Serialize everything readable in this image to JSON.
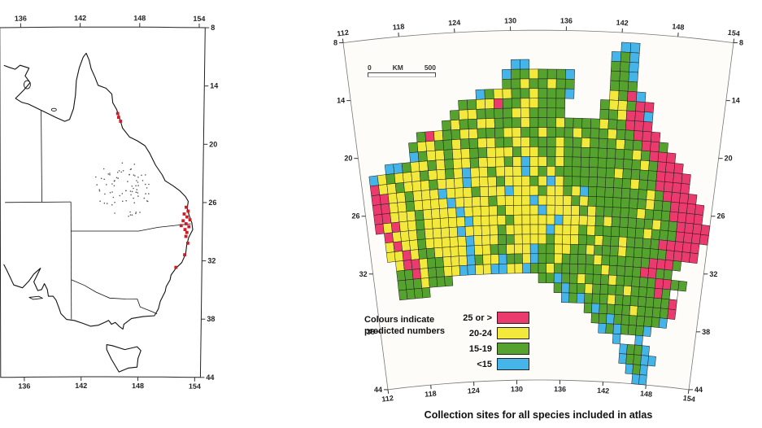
{
  "caption": "Collection sites for all species included in atlas",
  "scalebar": {
    "left": "0",
    "unit": "KM",
    "right": "500"
  },
  "legend": {
    "title_line1": "Colours indicate",
    "title_line2": "predicted numbers",
    "items": [
      {
        "label": "25 or >",
        "color": "#ea3a6e"
      },
      {
        "label": "20-24",
        "color": "#f2e93c"
      },
      {
        "label": "15-19",
        "color": "#55a32e"
      },
      {
        "label": "<15",
        "color": "#45b4e8"
      }
    ]
  },
  "left_map": {
    "ticks_top": [
      "136",
      "142",
      "148",
      "154"
    ],
    "ticks_bottom": [
      "136",
      "142",
      "148",
      "154"
    ],
    "ticks_right": [
      "8",
      "14",
      "20",
      "26",
      "32",
      "38",
      "44"
    ],
    "markers": {
      "color": "#cf1b26",
      "points": [
        {
          "lon": 145.8,
          "lat": 16.9
        },
        {
          "lon": 145.9,
          "lat": 17.3
        },
        {
          "lon": 146.1,
          "lat": 17.7
        },
        {
          "lon": 152.9,
          "lat": 26.5
        },
        {
          "lon": 153.1,
          "lat": 26.9
        },
        {
          "lon": 152.7,
          "lat": 27.2
        },
        {
          "lon": 153.0,
          "lat": 27.5
        },
        {
          "lon": 153.3,
          "lat": 27.8
        },
        {
          "lon": 152.6,
          "lat": 27.9
        },
        {
          "lon": 152.9,
          "lat": 28.2
        },
        {
          "lon": 153.2,
          "lat": 28.5
        },
        {
          "lon": 152.8,
          "lat": 28.8
        },
        {
          "lon": 153.0,
          "lat": 29.1
        },
        {
          "lon": 152.4,
          "lat": 28.4
        },
        {
          "lon": 152.9,
          "lat": 29.5
        },
        {
          "lon": 153.1,
          "lat": 30.2
        },
        {
          "lon": 152.8,
          "lat": 31.4
        },
        {
          "lon": 151.9,
          "lat": 32.7
        }
      ]
    },
    "stipple": {
      "lon": 146.3,
      "rlon": 3.1,
      "lat": 24.8,
      "rlat": 3.0,
      "count": 110
    }
  },
  "right_map": {
    "ticks_lon": [
      "112",
      "118",
      "124",
      "130",
      "136",
      "142",
      "148",
      "154"
    ],
    "ticks_lat": [
      "8",
      "14",
      "20",
      "26",
      "32",
      "38",
      "44"
    ],
    "grid": {
      "cell_colors": {
        "R": "#ea3a6e",
        "Y": "#f2e93c",
        "G": "#55a32e",
        "B": "#45b4e8",
        "W": "#ffffff"
      },
      "rows": [
        {
          "lat": 9,
          "segs": [
            {
              "lon": 142,
              "codes": "BB"
            }
          ]
        },
        {
          "lat": 10,
          "segs": [
            {
              "lon": 141,
              "codes": "BGB"
            }
          ]
        },
        {
          "lat": 11,
          "segs": [
            {
              "lon": 130,
              "codes": "BB"
            },
            {
              "lon": 141,
              "codes": "GGB"
            }
          ]
        },
        {
          "lat": 12,
          "segs": [
            {
              "lon": 129,
              "codes": "BGGYGGGB"
            },
            {
              "lon": 141,
              "codes": "GGB"
            }
          ]
        },
        {
          "lat": 13,
          "segs": [
            {
              "lon": 129,
              "codes": "GGYGGYGG"
            },
            {
              "lon": 141,
              "codes": "GGG"
            }
          ]
        },
        {
          "lat": 14,
          "segs": [
            {
              "lon": 126,
              "codes": "BGYYGGYGGGB"
            },
            {
              "lon": 141,
              "codes": "YGRB"
            }
          ]
        },
        {
          "lat": 15,
          "segs": [
            {
              "lon": 124,
              "codes": "GGYYRGGYYGGG"
            },
            {
              "lon": 140,
              "codes": "GYYGRR"
            }
          ]
        },
        {
          "lat": 16,
          "segs": [
            {
              "lon": 123,
              "codes": "GYYGGGGYYGGGG"
            },
            {
              "lon": 140,
              "codes": "GGYRRB"
            }
          ]
        },
        {
          "lat": 17,
          "segs": [
            {
              "lon": 122,
              "codes": "GYGGYYGGGYGGGYGGGGYGGRRR"
            }
          ]
        },
        {
          "lat": 18,
          "segs": [
            {
              "lon": 119,
              "codes": "GRYGGYYGGGYYGGYGGGYGGGYGGRRR"
            }
          ]
        },
        {
          "lat": 19,
          "segs": [
            {
              "lon": 118,
              "codes": "GYYGGYGGYYGGYYGGGYGGYGGGYGGRRG"
            }
          ]
        },
        {
          "lat": 20,
          "segs": [
            {
              "lon": 118,
              "codes": "BGYYGYYGGYYYGYYGGYGGGGGGGGYGRRR"
            }
          ]
        },
        {
          "lat": 21,
          "segs": [
            {
              "lon": 115,
              "codes": "BBGYYGYGYYGYYYGYBYYGYGGGGGGGGGYGRRR"
            }
          ]
        },
        {
          "lat": 22,
          "segs": [
            {
              "lon": 113,
              "codes": "BYGYYYGYYGYBYYGYYYBYGYGGGGGGGYGGGGRRRR"
            }
          ]
        },
        {
          "lat": 23,
          "segs": [
            {
              "lon": 113,
              "codes": "RYYGYYYGYYYBYYYGYYYGYBYGGGGGGGGYGGRRRR"
            }
          ]
        },
        {
          "lat": 24,
          "segs": [
            {
              "lon": 113,
              "codes": "RRYYGYYYBYYYGYYYBYYYGYYGYBGGGGGGGYGRRRR"
            }
          ]
        },
        {
          "lat": 25,
          "segs": [
            {
              "lon": 113,
              "codes": "RRYYGYYYYBYYYYGYYYYBYYYYGYGGGGGGGYGGRRRR"
            }
          ]
        },
        {
          "lat": 26,
          "segs": [
            {
              "lon": 113,
              "codes": "RRYYYGYYYYBYYYYGYYYYBYYYYGYGGGGGYGGGRRRR"
            }
          ]
        },
        {
          "lat": 27,
          "segs": [
            {
              "lon": 113,
              "codes": "RYRYYGYYYYYBYYYYGYYYYYBYYYYGYGGGGGYGGRRRR"
            }
          ]
        },
        {
          "lat": 28,
          "segs": [
            {
              "lon": 114,
              "codes": "RYYYGYYYYBYYYYGYYYYYBYYYGYGGGGGGYGGGRRRR"
            }
          ]
        },
        {
          "lat": 29,
          "segs": [
            {
              "lon": 114,
              "codes": "YRYYGYYYYYBYYYGGYYYYGYYYGGYGGYGGGGRRRRR"
            }
          ]
        },
        {
          "lat": 30,
          "segs": [
            {
              "lon": 114,
              "codes": "YYRYGGYYYYBYYGGYYYBGGYYGGYGGGYGGGGGRRRR"
            }
          ]
        },
        {
          "lat": 31,
          "segs": [
            {
              "lon": 115,
              "codes": "YRRYGGYYYBGYYBGGYBGGYGGGGYGGGGGGRRRG"
            }
          ]
        },
        {
          "lat": 32,
          "segs": [
            {
              "lon": 115,
              "codes": "GGRYGGYYBBYYBBYYBGGYGGGGGGYGGGGRRGG"
            }
          ]
        },
        {
          "lat": 33,
          "segs": [
            {
              "lon": 115,
              "codes": "GGGYGGG"
            },
            {
              "lon": 133,
              "codes": "GGBGGYGGGYGGGGGRRGG"
            }
          ]
        },
        {
          "lat": 34,
          "segs": [
            {
              "lon": 115,
              "codes": "GGGG"
            },
            {
              "lon": 135,
              "codes": "GBGGYGGGGYGGGRGW"
            }
          ]
        },
        {
          "lat": 35,
          "segs": [
            {
              "lon": 136,
              "codes": "BGBGGGYGGGGGGGR"
            }
          ]
        },
        {
          "lat": 36,
          "segs": [
            {
              "lon": 139,
              "codes": "GBGGGGYGGGGR"
            }
          ]
        },
        {
          "lat": 37,
          "segs": [
            {
              "lon": 140,
              "codes": "GGBGGGGGGB"
            }
          ]
        },
        {
          "lat": 38,
          "segs": [
            {
              "lon": 141,
              "codes": "BGBGGGB"
            }
          ]
        },
        {
          "lat": 39,
          "segs": [
            {
              "lon": 143,
              "codes": "B"
            },
            {
              "lon": 146,
              "codes": "B"
            }
          ]
        },
        {
          "lat": 40,
          "segs": [
            {
              "lon": 144,
              "codes": "BGGB"
            }
          ]
        },
        {
          "lat": 41,
          "segs": [
            {
              "lon": 144,
              "codes": "BGGBB"
            }
          ]
        },
        {
          "lat": 42,
          "segs": [
            {
              "lon": 145,
              "codes": "BGB"
            }
          ]
        },
        {
          "lat": 43,
          "segs": [
            {
              "lon": 146,
              "codes": "BB"
            }
          ]
        }
      ]
    }
  }
}
